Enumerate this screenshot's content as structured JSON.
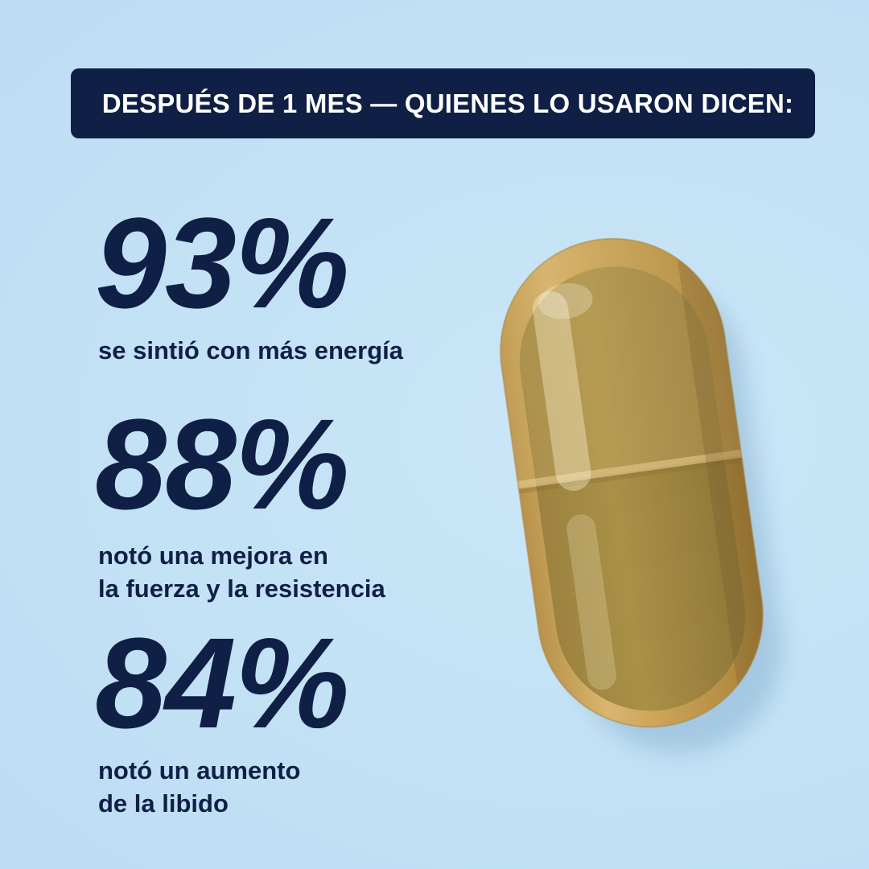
{
  "banner": {
    "text": "DESPUÉS DE 1 MES — QUIENES LO USARON DICEN:"
  },
  "stats": [
    {
      "value": "93%",
      "caption": "se sintió con más energía"
    },
    {
      "value": "88%",
      "caption": "notó una mejora en\nla fuerza y la resistencia"
    },
    {
      "value": "84%",
      "caption": "notó un aumento\nde la libido"
    }
  ],
  "colors": {
    "background": "#c4e2f6",
    "navy": "#0f1f45",
    "banner_text": "#ffffff",
    "capsule_shell": "#c9a55a",
    "capsule_powder": "#a58a3c"
  },
  "image": {
    "capsule": "capsule-pill-illustration"
  }
}
